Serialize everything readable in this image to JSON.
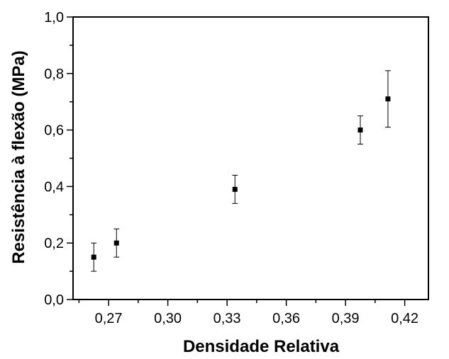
{
  "chart_data": {
    "type": "scatter",
    "title": "",
    "xlabel": "Densidade Relativa",
    "ylabel": "Resistência à flexão (MPa)",
    "xlim": [
      0.252,
      0.432
    ],
    "ylim": [
      0.0,
      1.0
    ],
    "xticks": [
      "0,27",
      "0,30",
      "0,33",
      "0,36",
      "0,39",
      "0,42"
    ],
    "xtick_values": [
      0.27,
      0.3,
      0.33,
      0.36,
      0.39,
      0.42
    ],
    "yticks": [
      "0,0",
      "0,2",
      "0,4",
      "0,6",
      "0,8",
      "1,0"
    ],
    "ytick_values": [
      0.0,
      0.2,
      0.4,
      0.6,
      0.8,
      1.0
    ],
    "grid": false,
    "legend": false,
    "series": [
      {
        "x": [
          0.2625,
          0.274,
          0.334,
          0.3975,
          0.4115
        ],
        "y": [
          0.15,
          0.2,
          0.39,
          0.6,
          0.71
        ],
        "yerr": [
          0.05,
          0.05,
          0.05,
          0.05,
          0.1
        ],
        "marker": "square",
        "color": "#000000"
      }
    ]
  }
}
